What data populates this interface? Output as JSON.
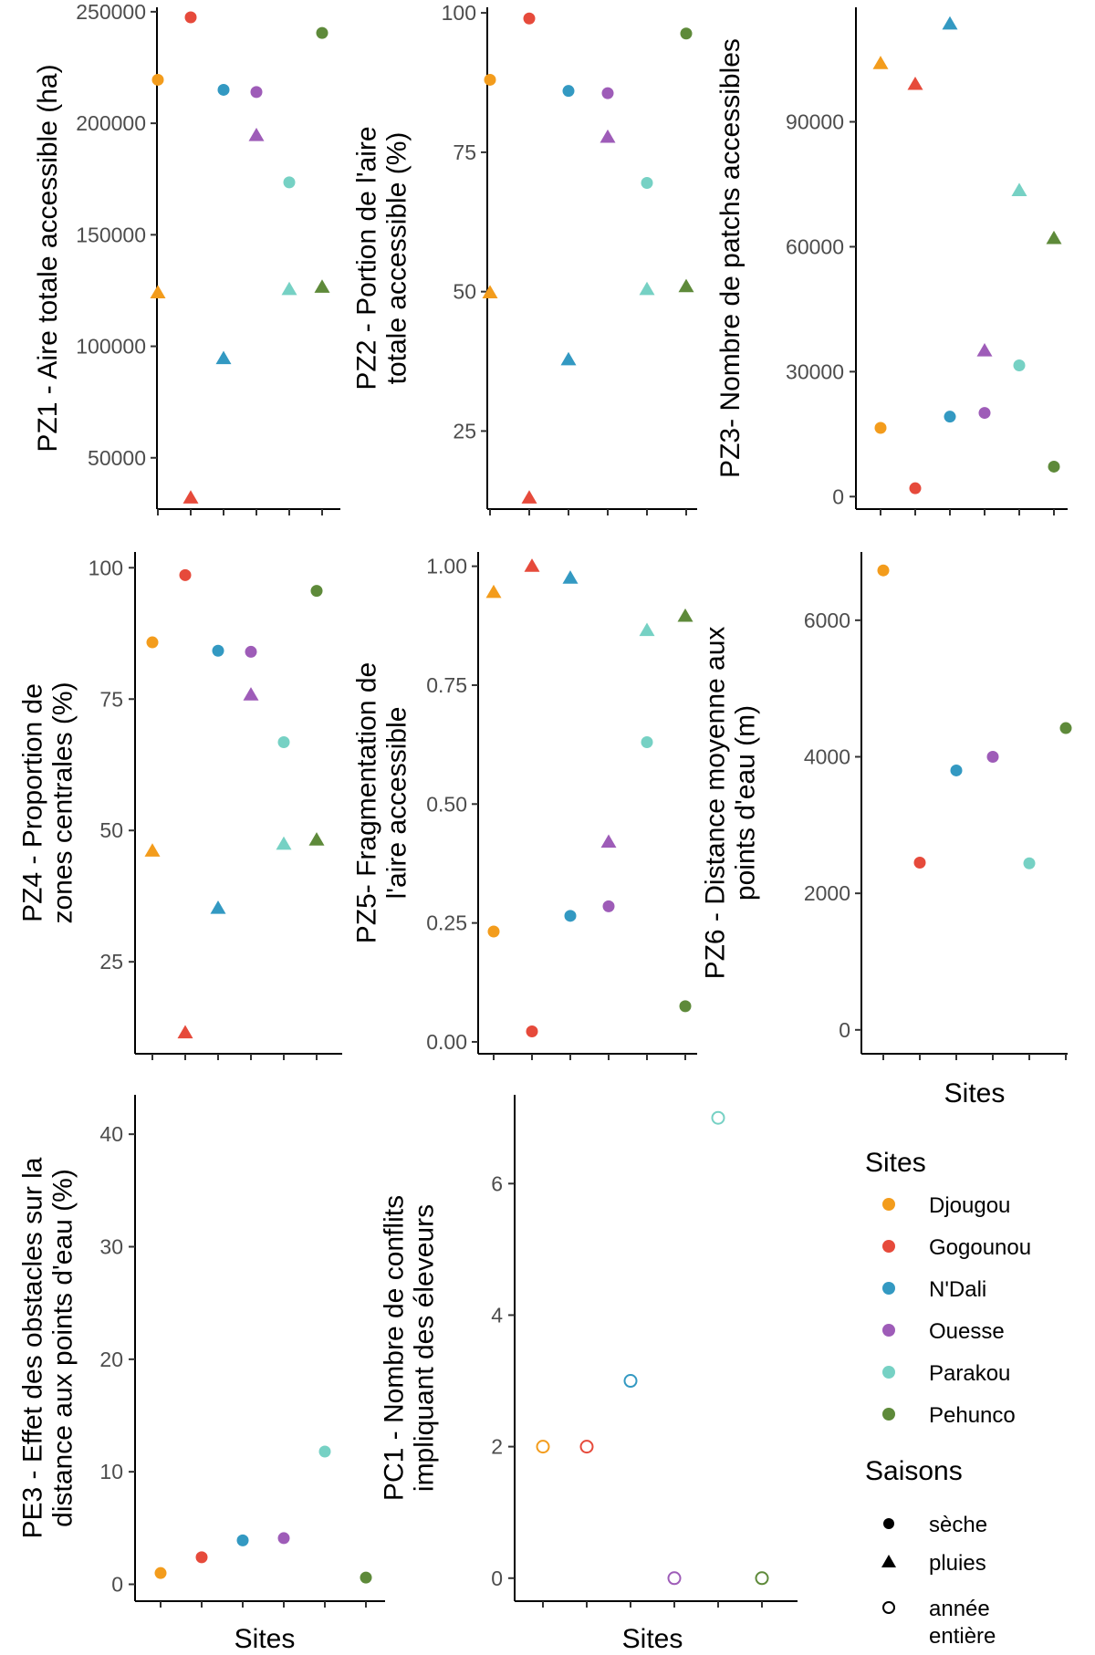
{
  "colors": {
    "Djougou": "#f39c1c",
    "Gogounou": "#e64a3b",
    "N'Dali": "#3399c2",
    "Ouesse": "#9e5cb8",
    "Parakou": "#76d1c4",
    "Pehunco": "#5e8a3a"
  },
  "chart_data": [
    {
      "type": "scatter",
      "ylabel": [
        "PZ1 - Aire totale accessible (ha)"
      ],
      "xlabel": "",
      "categories": [
        "Djougou",
        "Gogounou",
        "N'Dali",
        "Ouesse",
        "Parakou",
        "Pehunco"
      ],
      "ylim": [
        27000,
        252000
      ],
      "yticks": [
        50000,
        100000,
        150000,
        200000,
        250000
      ],
      "ytick_labels": [
        "50000",
        "100000",
        "150000",
        "200000",
        "250000"
      ],
      "series": [
        {
          "name": "sèche",
          "marker": "circle",
          "values": [
            219500,
            247500,
            215000,
            214000,
            173500,
            240500
          ]
        },
        {
          "name": "pluies",
          "marker": "triangle",
          "values": [
            124000,
            32000,
            94500,
            194500,
            125500,
            126500
          ]
        }
      ]
    },
    {
      "type": "scatter",
      "ylabel": [
        "PZ2 - Portion de l'aire",
        "totale accessible (%)"
      ],
      "xlabel": "",
      "categories": [
        "Djougou",
        "Gogounou",
        "N'Dali",
        "Ouesse",
        "Parakou",
        "Pehunco"
      ],
      "ylim": [
        11,
        101
      ],
      "yticks": [
        25,
        50,
        75,
        100
      ],
      "ytick_labels": [
        "25",
        "50",
        "75",
        "100"
      ],
      "series": [
        {
          "name": "sèche",
          "marker": "circle",
          "values": [
            88,
            99,
            86,
            85.6,
            69.5,
            96.3
          ]
        },
        {
          "name": "pluies",
          "marker": "triangle",
          "values": [
            49.8,
            13,
            37.8,
            77.7,
            50.4,
            50.9
          ]
        }
      ]
    },
    {
      "type": "scatter",
      "ylabel": [
        "PZ3- Nombre de patchs accessibles"
      ],
      "xlabel": "",
      "categories": [
        "Djougou",
        "Gogounou",
        "N'Dali",
        "Ouesse",
        "Parakou",
        "Pehunco"
      ],
      "ylim": [
        -3000,
        117500
      ],
      "yticks": [
        0,
        30000,
        60000,
        90000
      ],
      "ytick_labels": [
        "0",
        "30000",
        "60000",
        "90000"
      ],
      "series": [
        {
          "name": "sèche",
          "marker": "circle",
          "values": [
            16500,
            2000,
            19200,
            20100,
            31500,
            7200
          ]
        },
        {
          "name": "pluies",
          "marker": "triangle",
          "values": [
            104000,
            99000,
            113500,
            35000,
            73500,
            62000
          ]
        }
      ]
    },
    {
      "type": "scatter",
      "ylabel": [
        "PZ4 - Proportion de",
        "zones centrales (%)"
      ],
      "xlabel": "",
      "categories": [
        "Djougou",
        "Gogounou",
        "N'Dali",
        "Ouesse",
        "Parakou",
        "Pehunco"
      ],
      "ylim": [
        7.5,
        103
      ],
      "yticks": [
        25,
        50,
        75,
        100
      ],
      "ytick_labels": [
        "25",
        "50",
        "75",
        "100"
      ],
      "series": [
        {
          "name": "sèche",
          "marker": "circle",
          "values": [
            85.8,
            98.6,
            84.2,
            84,
            66.8,
            95.6
          ]
        },
        {
          "name": "pluies",
          "marker": "triangle",
          "values": [
            46.1,
            11.5,
            35.2,
            75.8,
            47.4,
            48.2
          ]
        }
      ]
    },
    {
      "type": "scatter",
      "ylabel": [
        "PZ5- Fragmentation de",
        "l'aire accessible"
      ],
      "xlabel": "",
      "categories": [
        "Djougou",
        "Gogounou",
        "N'Dali",
        "Ouesse",
        "Parakou",
        "Pehunco"
      ],
      "ylim": [
        -0.025,
        1.03
      ],
      "yticks": [
        0,
        0.25,
        0.5,
        0.75,
        1
      ],
      "ytick_labels": [
        "0.00",
        "0.25",
        "0.50",
        "0.75",
        "1.00"
      ],
      "series": [
        {
          "name": "sèche",
          "marker": "circle",
          "values": [
            0.232,
            0.022,
            0.265,
            0.285,
            0.63,
            0.075
          ]
        },
        {
          "name": "pluies",
          "marker": "triangle",
          "values": [
            0.945,
            1.0,
            0.975,
            0.42,
            0.865,
            0.895
          ]
        }
      ]
    },
    {
      "type": "scatter",
      "ylabel": [
        "PZ6 - Distance moyenne aux",
        "points d'eau (m)"
      ],
      "xlabel": "Sites",
      "categories": [
        "Djougou",
        "Gogounou",
        "N'Dali",
        "Ouesse",
        "Parakou",
        "Pehunco"
      ],
      "ylim": [
        -350,
        7000
      ],
      "yticks": [
        0,
        2000,
        4000,
        6000
      ],
      "ytick_labels": [
        "0",
        "2000",
        "4000",
        "6000"
      ],
      "series": [
        {
          "name": "sèche",
          "marker": "circle",
          "values": [
            6730,
            2450,
            3800,
            4000,
            2440,
            4420
          ]
        }
      ]
    },
    {
      "type": "scatter",
      "ylabel": [
        "PE3 - Effet des obstacles sur la",
        "distance aux points d'eau (%)"
      ],
      "xlabel": "Sites",
      "categories": [
        "Djougou",
        "Gogounou",
        "N'Dali",
        "Ouesse",
        "Parakou",
        "Pehunco"
      ],
      "ylim": [
        -1.5,
        43.5
      ],
      "yticks": [
        0,
        10,
        20,
        30,
        40
      ],
      "ytick_labels": [
        "0",
        "10",
        "20",
        "30",
        "40"
      ],
      "series": [
        {
          "name": "sèche",
          "marker": "circle",
          "values": [
            1.0,
            2.4,
            3.9,
            4.1,
            11.8,
            0.6
          ]
        }
      ]
    },
    {
      "type": "scatter",
      "ylabel": [
        "PC1 - Nombre de conflits",
        "impliquant des éleveurs"
      ],
      "xlabel": "Sites",
      "categories": [
        "Djougou",
        "Gogounou",
        "N'Dali",
        "Ouesse",
        "Parakou",
        "Pehunco"
      ],
      "ylim": [
        -0.35,
        7.35
      ],
      "yticks": [
        0,
        2,
        4,
        6
      ],
      "ytick_labels": [
        "0",
        "2",
        "4",
        "6"
      ],
      "series": [
        {
          "name": "année entière",
          "marker": "open-circle",
          "values": [
            2,
            2,
            3,
            0,
            7,
            0
          ]
        }
      ]
    }
  ],
  "legend": {
    "sites_title": "Sites",
    "sites": [
      "Djougou",
      "Gogounou",
      "N'Dali",
      "Ouesse",
      "Parakou",
      "Pehunco"
    ],
    "seasons_title": "Saisons",
    "seasons": [
      {
        "label": [
          "sèche"
        ],
        "marker": "circle"
      },
      {
        "label": [
          "pluies"
        ],
        "marker": "triangle"
      },
      {
        "label": [
          "année",
          "entière"
        ],
        "marker": "open-circle"
      }
    ]
  }
}
